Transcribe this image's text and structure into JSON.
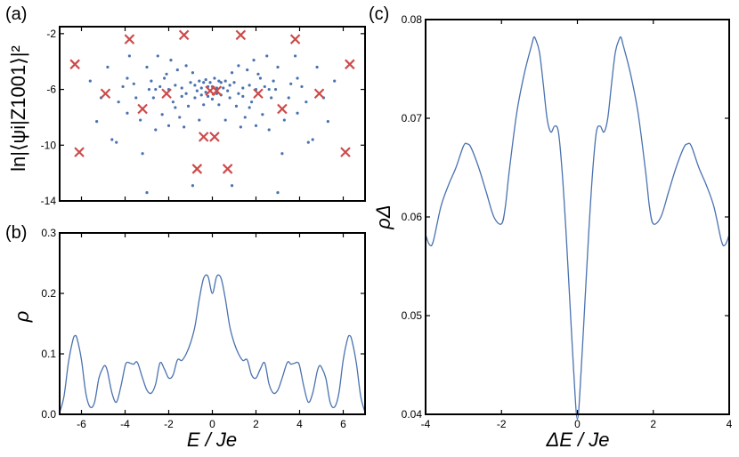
{
  "chart_data": [
    {
      "id": "a",
      "type": "scatter",
      "panel_label": "(a)",
      "ylabel": "ln|⟨ψi|Z1001⟩|²",
      "xlabel": "",
      "xlim": [
        -7,
        7
      ],
      "ylim": [
        -14,
        -1.5
      ],
      "yticks": [
        -2,
        -6,
        -10,
        -14
      ],
      "xticks": [
        -6,
        -4,
        -2,
        0,
        2,
        4,
        6
      ],
      "show_x_tick_labels": false,
      "colors": {
        "dots": "#4a72b0",
        "crosses": "#cd4a4a"
      },
      "series": [
        {
          "name": "crosses",
          "points": [
            [
              -6.3,
              -4.2
            ],
            [
              -6.1,
              -10.5
            ],
            [
              -4.9,
              -6.3
            ],
            [
              -3.8,
              -2.4
            ],
            [
              -3.2,
              -7.4
            ],
            [
              -2.1,
              -6.3
            ],
            [
              -1.3,
              -2.1
            ],
            [
              -0.7,
              -11.7
            ],
            [
              -0.4,
              -9.4
            ],
            [
              -0.1,
              -6.1
            ],
            [
              0.1,
              -9.4
            ],
            [
              0.2,
              -6.1
            ],
            [
              0.7,
              -11.7
            ],
            [
              1.3,
              -2.1
            ],
            [
              2.1,
              -6.3
            ],
            [
              3.2,
              -7.4
            ],
            [
              3.8,
              -2.4
            ],
            [
              4.9,
              -6.3
            ],
            [
              6.1,
              -10.5
            ],
            [
              6.3,
              -4.2
            ]
          ]
        },
        {
          "name": "dots",
          "points": [
            [
              -5.6,
              -5.4
            ],
            [
              -5.3,
              -8.3
            ],
            [
              -5.1,
              -6.6
            ],
            [
              -4.8,
              -4.4
            ],
            [
              -4.6,
              -9.6
            ],
            [
              -4.4,
              -9.8
            ],
            [
              -4.3,
              -6.9
            ],
            [
              -4.1,
              -5.8
            ],
            [
              -3.9,
              -5.2
            ],
            [
              -3.9,
              -7.7
            ],
            [
              -3.8,
              -3.6
            ],
            [
              -3.6,
              -5.6
            ],
            [
              -3.5,
              -6.6
            ],
            [
              -3.3,
              -8.2
            ],
            [
              -3.2,
              -10.6
            ],
            [
              -3.0,
              -13.4
            ],
            [
              -3.0,
              -4.4
            ],
            [
              -2.9,
              -6.0
            ],
            [
              -2.8,
              -5.4
            ],
            [
              -2.7,
              -6.6
            ],
            [
              -2.6,
              -8.9
            ],
            [
              -2.6,
              -6.0
            ],
            [
              -2.5,
              -3.6
            ],
            [
              -2.4,
              -5.8
            ],
            [
              -2.3,
              -7.8
            ],
            [
              -2.2,
              -5.2
            ],
            [
              -2.1,
              -4.9
            ],
            [
              -2.0,
              -6.0
            ],
            [
              -2.0,
              -8.6
            ],
            [
              -1.9,
              -3.9
            ],
            [
              -1.8,
              -6.9
            ],
            [
              -1.7,
              -7.3
            ],
            [
              -1.7,
              -5.7
            ],
            [
              -1.6,
              -4.6
            ],
            [
              -1.5,
              -8.0
            ],
            [
              -1.4,
              -5.9
            ],
            [
              -1.4,
              -6.5
            ],
            [
              -1.3,
              -8.7
            ],
            [
              -1.2,
              -4.3
            ],
            [
              -1.2,
              -6.3
            ],
            [
              -1.1,
              -7.2
            ],
            [
              -1.0,
              -5.5
            ],
            [
              -0.9,
              -12.9
            ],
            [
              -0.9,
              -4.8
            ],
            [
              -0.8,
              -6.6
            ],
            [
              -0.8,
              -5.7
            ],
            [
              -0.7,
              -6.1
            ],
            [
              -0.6,
              -8.2
            ],
            [
              -0.6,
              -5.4
            ],
            [
              -0.5,
              -6.4
            ],
            [
              -0.5,
              -5.9
            ],
            [
              -0.4,
              -5.5
            ],
            [
              -0.4,
              -7.1
            ],
            [
              -0.3,
              -6.2
            ],
            [
              -0.3,
              -5.3
            ],
            [
              -0.2,
              -5.8
            ],
            [
              -0.2,
              -6.5
            ],
            [
              -0.1,
              -5.5
            ],
            [
              0.0,
              -5.8
            ],
            [
              0.0,
              -6.7
            ],
            [
              0.1,
              -5.2
            ],
            [
              0.2,
              -6.3
            ],
            [
              0.2,
              -5.9
            ],
            [
              0.3,
              -5.4
            ],
            [
              0.3,
              -7.1
            ],
            [
              0.4,
              -5.5
            ],
            [
              0.4,
              -6.4
            ],
            [
              0.5,
              -5.9
            ],
            [
              0.6,
              -5.4
            ],
            [
              0.6,
              -8.2
            ],
            [
              0.7,
              -6.1
            ],
            [
              0.8,
              -5.7
            ],
            [
              0.8,
              -6.6
            ],
            [
              0.9,
              -4.8
            ],
            [
              0.9,
              -12.9
            ],
            [
              1.0,
              -5.5
            ],
            [
              1.1,
              -7.2
            ],
            [
              1.2,
              -6.3
            ],
            [
              1.2,
              -4.3
            ],
            [
              1.3,
              -8.7
            ],
            [
              1.4,
              -6.5
            ],
            [
              1.4,
              -5.9
            ],
            [
              1.5,
              -8.0
            ],
            [
              1.6,
              -4.6
            ],
            [
              1.7,
              -5.7
            ],
            [
              1.7,
              -7.3
            ],
            [
              1.8,
              -6.9
            ],
            [
              1.9,
              -3.9
            ],
            [
              2.0,
              -8.6
            ],
            [
              2.0,
              -6.0
            ],
            [
              2.1,
              -4.9
            ],
            [
              2.2,
              -5.2
            ],
            [
              2.3,
              -7.8
            ],
            [
              2.4,
              -5.8
            ],
            [
              2.5,
              -3.6
            ],
            [
              2.6,
              -6.0
            ],
            [
              2.6,
              -8.9
            ],
            [
              2.7,
              -6.6
            ],
            [
              2.8,
              -5.4
            ],
            [
              2.9,
              -6.0
            ],
            [
              3.0,
              -4.4
            ],
            [
              3.0,
              -13.4
            ],
            [
              3.2,
              -10.6
            ],
            [
              3.3,
              -8.2
            ],
            [
              3.5,
              -6.6
            ],
            [
              3.6,
              -5.6
            ],
            [
              3.8,
              -3.6
            ],
            [
              3.9,
              -7.7
            ],
            [
              3.9,
              -5.2
            ],
            [
              4.1,
              -5.8
            ],
            [
              4.3,
              -6.9
            ],
            [
              4.4,
              -9.8
            ],
            [
              4.6,
              -9.6
            ],
            [
              4.8,
              -4.4
            ],
            [
              5.1,
              -6.6
            ],
            [
              5.3,
              -8.3
            ],
            [
              5.6,
              -5.4
            ]
          ]
        }
      ]
    },
    {
      "id": "b",
      "type": "line",
      "panel_label": "(b)",
      "ylabel": "ρ",
      "xlabel": "E / Je",
      "xlim": [
        -7,
        7
      ],
      "ylim": [
        0,
        0.3
      ],
      "xticks": [
        -6,
        -4,
        -2,
        0,
        2,
        4,
        6
      ],
      "xticklabels": [
        "-6",
        "-4",
        "-2",
        "0",
        "2",
        "4",
        "6"
      ],
      "yticks": [
        0,
        0.1,
        0.2,
        0.3
      ],
      "yticklabels": [
        "0.0",
        "0.1",
        "0.2",
        "0.3"
      ],
      "line_color": "#4a72b0",
      "x": [
        -7.0,
        -6.8,
        -6.6,
        -6.4,
        -6.3,
        -6.2,
        -6.0,
        -5.8,
        -5.6,
        -5.4,
        -5.2,
        -5.0,
        -4.9,
        -4.8,
        -4.6,
        -4.4,
        -4.2,
        -4.0,
        -3.9,
        -3.8,
        -3.6,
        -3.5,
        -3.4,
        -3.2,
        -3.0,
        -2.8,
        -2.6,
        -2.4,
        -2.2,
        -2.0,
        -1.8,
        -1.6,
        -1.4,
        -1.2,
        -1.0,
        -0.8,
        -0.6,
        -0.4,
        -0.2,
        0.0,
        0.2,
        0.4,
        0.6,
        0.8,
        1.0,
        1.2,
        1.4,
        1.6,
        1.8,
        2.0,
        2.2,
        2.4,
        2.6,
        2.8,
        3.0,
        3.2,
        3.4,
        3.5,
        3.6,
        3.8,
        3.9,
        4.0,
        4.2,
        4.4,
        4.6,
        4.8,
        4.9,
        5.0,
        5.2,
        5.4,
        5.6,
        5.8,
        6.0,
        6.2,
        6.3,
        6.4,
        6.6,
        6.8,
        7.0
      ],
      "y": [
        0.003,
        0.03,
        0.085,
        0.122,
        0.13,
        0.125,
        0.09,
        0.035,
        0.012,
        0.02,
        0.06,
        0.078,
        0.08,
        0.07,
        0.035,
        0.02,
        0.045,
        0.08,
        0.086,
        0.085,
        0.083,
        0.087,
        0.083,
        0.06,
        0.04,
        0.035,
        0.05,
        0.085,
        0.075,
        0.06,
        0.065,
        0.09,
        0.089,
        0.1,
        0.118,
        0.145,
        0.19,
        0.225,
        0.228,
        0.2,
        0.228,
        0.225,
        0.19,
        0.145,
        0.118,
        0.1,
        0.089,
        0.09,
        0.065,
        0.06,
        0.075,
        0.085,
        0.05,
        0.035,
        0.04,
        0.06,
        0.083,
        0.087,
        0.083,
        0.085,
        0.086,
        0.08,
        0.045,
        0.02,
        0.035,
        0.07,
        0.08,
        0.078,
        0.06,
        0.02,
        0.012,
        0.035,
        0.09,
        0.125,
        0.13,
        0.122,
        0.085,
        0.03,
        0.003
      ]
    },
    {
      "id": "c",
      "type": "line",
      "panel_label": "(c)",
      "ylabel": "ρΔ",
      "xlabel": "ΔE / Je",
      "xlim": [
        -4,
        4
      ],
      "ylim": [
        0.04,
        0.08
      ],
      "xticks": [
        -4,
        -2,
        0,
        2,
        4
      ],
      "xticklabels": [
        "-4",
        "-2",
        "0",
        "2",
        "4"
      ],
      "yticks": [
        0.04,
        0.05,
        0.06,
        0.07,
        0.08
      ],
      "yticklabels": [
        "0.04",
        "0.05",
        "0.06",
        "0.07",
        "0.08"
      ],
      "line_color": "#4a72b0",
      "x": [
        -4.0,
        -3.9,
        -3.8,
        -3.6,
        -3.4,
        -3.2,
        -3.0,
        -2.9,
        -2.8,
        -2.6,
        -2.4,
        -2.2,
        -2.0,
        -1.9,
        -1.8,
        -1.6,
        -1.4,
        -1.2,
        -1.15,
        -1.1,
        -1.0,
        -0.9,
        -0.8,
        -0.7,
        -0.6,
        -0.5,
        -0.4,
        -0.3,
        -0.2,
        -0.1,
        0.0,
        0.1,
        0.2,
        0.3,
        0.4,
        0.5,
        0.6,
        0.7,
        0.8,
        0.9,
        1.0,
        1.1,
        1.15,
        1.2,
        1.4,
        1.6,
        1.8,
        1.9,
        2.0,
        2.2,
        2.4,
        2.6,
        2.8,
        2.9,
        3.0,
        3.2,
        3.4,
        3.6,
        3.8,
        3.9,
        4.0
      ],
      "y": [
        0.0582,
        0.0572,
        0.0575,
        0.061,
        0.0632,
        0.065,
        0.0672,
        0.0674,
        0.067,
        0.065,
        0.0625,
        0.06,
        0.0593,
        0.061,
        0.0645,
        0.0705,
        0.0745,
        0.0775,
        0.0782,
        0.078,
        0.0767,
        0.0735,
        0.07,
        0.0686,
        0.0692,
        0.0686,
        0.0645,
        0.0585,
        0.0515,
        0.0445,
        0.0395,
        0.0445,
        0.0515,
        0.0585,
        0.0645,
        0.0686,
        0.0692,
        0.0686,
        0.07,
        0.0735,
        0.0767,
        0.078,
        0.0782,
        0.0775,
        0.0745,
        0.0705,
        0.0645,
        0.061,
        0.0593,
        0.06,
        0.0625,
        0.065,
        0.067,
        0.0674,
        0.0672,
        0.065,
        0.0632,
        0.061,
        0.0575,
        0.0572,
        0.0582
      ]
    }
  ]
}
